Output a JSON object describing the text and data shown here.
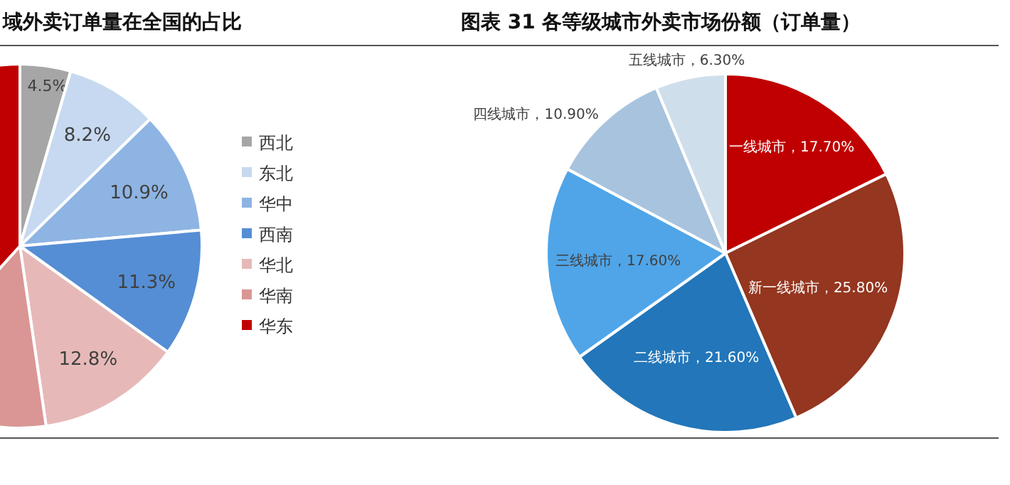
{
  "chart_data": [
    {
      "type": "pie",
      "title": "域外卖订单量在全国的占比",
      "categories": [
        "西北",
        "东北",
        "华中",
        "西南",
        "华北",
        "华南",
        "华东"
      ],
      "values": [
        4.5,
        8.2,
        10.9,
        11.3,
        12.8,
        14.0,
        38.3
      ],
      "colors": [
        "#a6a6a6",
        "#c6d9f0",
        "#8eb4e3",
        "#558ed5",
        "#e6b9b8",
        "#d99694",
        "#c00000"
      ],
      "value_labels": [
        "4.5%",
        "8.2%",
        "10.9%",
        "11.3%",
        "12.8%",
        null,
        null
      ],
      "legend": "right"
    },
    {
      "type": "pie",
      "title": "图表 31 各等级城市外卖市场份额（订单量）",
      "categories": [
        "一线城市",
        "新一线城市",
        "二线城市",
        "三线城市",
        "四线城市",
        "五线城市"
      ],
      "values": [
        17.7,
        25.8,
        21.6,
        17.6,
        10.9,
        6.3
      ],
      "colors": [
        "#c00000",
        "#943620",
        "#2276b9",
        "#4fa5e8",
        "#a8c3de",
        "#cfdeeb"
      ],
      "value_labels": [
        "17.70%",
        "25.80%",
        "21.60%",
        "17.60%",
        "10.90%",
        "6.30%"
      ]
    }
  ]
}
